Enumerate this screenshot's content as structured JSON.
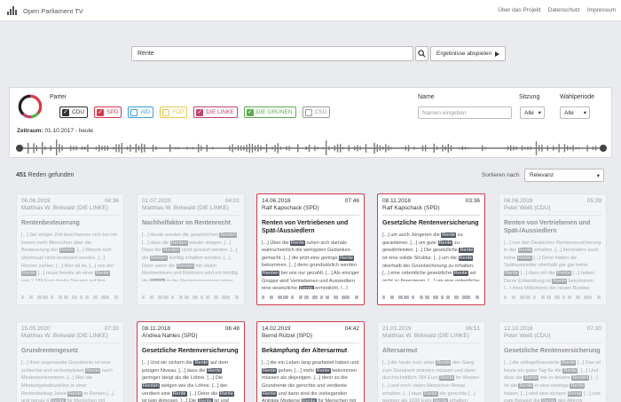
{
  "app": {
    "title": "Open Parliament TV"
  },
  "nav": {
    "items": [
      "Über das Projekt",
      "Datenschutz",
      "Impressum"
    ]
  },
  "search": {
    "value": "Rente",
    "play_label": "Ergebnisse abspielen"
  },
  "filters": {
    "partei_label": "Partei",
    "parties": [
      {
        "name": "CDU",
        "checked": true,
        "color": "#333333"
      },
      {
        "name": "SPD",
        "checked": true,
        "color": "#d43b4a"
      },
      {
        "name": "AfD",
        "checked": false,
        "color": "#3aa0d8"
      },
      {
        "name": "FDP",
        "checked": false,
        "color": "#e6c84a"
      },
      {
        "name": "DIE LINKE",
        "checked": true,
        "color": "#c0436e"
      },
      {
        "name": "DIE GRÜNEN",
        "checked": true,
        "color": "#5bae4c"
      },
      {
        "name": "CSU",
        "checked": false,
        "color": "#999999"
      }
    ],
    "name_label": "Name",
    "name_placeholder": "Namen eingeben",
    "sitzung_label": "Sitzung",
    "sitzung_value": "Alle",
    "wahlperiode_label": "Wahlperiode",
    "wahlperiode_value": "Alle",
    "zeitraum_label": "Zeitraum:",
    "zeitraum_value": "01.10.2017 - heute"
  },
  "results": {
    "count": "451",
    "count_suffix": "Reden gefunden",
    "sort_label": "Sortieren nach",
    "sort_value": "Relevanz"
  },
  "cards": [
    {
      "date": "06.06.2019",
      "time": "04:36",
      "speaker": "Matthias W. Birkwald (DIE LINKE)",
      "title": "Rentenbesteuerung",
      "active": false,
      "text": "[...] Sei einiger Zeit beschweren sich bei mir immer mehr Menschen über die Besteuerung der {Rente}. [...] Warum sich überhaupt nicht besteuert werden. [...] Renten zahlen, [...] Wer alt ist, [...] von der {Rente} [...] muss bereits ab einer {Rente} von 1 189 Euro brutto Steuern auf ihre {Rente}"
    },
    {
      "date": "01.07.2020",
      "time": "04:01",
      "speaker": "Matthias W. Birkwald (DIE LINKE)",
      "title": "Nachholfaktor im Rentenrecht",
      "active": false,
      "text": "[...] Heute wurden die gesetzlichen {Renten} [...] dass die {Renten} wieder steigen. [...] Dass die {Renten} nicht gekürzt werden. [...] die {Renten} künftig erhalten werden. [...] Denn wenn die {Renten} mit vielen Rentnerinnen und Rentnern wird ein künftig die {Rente} in der Rentenanpassung einer schrittweise"
    },
    {
      "date": "14.06.2018",
      "time": "07:46",
      "speaker": "Ralf Kapschack (SPD)",
      "title": "Renten von Vertriebenen und Spät-/Aussiedlern",
      "active": true,
      "text": "[...] Über die {Rente} ruhen sich damals wahrscheinlich die wenigsten Gedanken gemacht. [...] die jetzt eine geringe {Rente} bekommen. [...] denn grundsätzlich werden {Renten} bei uns nur gezahlt. [...] Als einziger Gruppe wird Vertriebenen und Aussiedlern eine gesetzliche {Rente} ermöglicht. [...] obwohl dieser {Rente}"
    },
    {
      "date": "08.11.2018",
      "time": "03:36",
      "speaker": "Ralf Kapschack (SPD)",
      "title": "Gesetzliche Rentenversicherung",
      "active": true,
      "text": "[...] um auch Jüngeren die {Rente} zu garantieren. [...] um gute {Rente} zu gewährleisten. [...] Die gesetzliche {Rente} ist eine solide Struktur. [...] um die {Rente} oberhalb der Grundsicherung zu erhalten. [...] eine ordentliche gesetzliche {Rente} sei nicht zu finanzieren. [...] um eine ordentliche"
    },
    {
      "date": "06.06.2019",
      "time": "05:39",
      "speaker": "Peter Weiß (CDU)",
      "title": "Renten von Vertriebenen und Spät-/Aussiedlern",
      "active": false,
      "text": "[...] von den Deutschen Rentenversicherung in der {Rente} erhalten. [...] besonders auch keine {Rente} [...] Denn hätten die Spätaussiedler oberhalb gar gar keine {Rente} [...] dass wir die {Rente} [...] haben. Diese Entwicklung ist {Rente} bekommen. [...] ihres Mitbürgers der neuen Bundes"
    },
    {
      "date": "15.05.2020",
      "time": "07:30",
      "speaker": "Matthias W. Birkwald (DIE LINKE)",
      "title": "Grundrentengesetz",
      "active": false,
      "text": "[...] Ihrer sogenannte Grundrente ist eine schlechte und verkompliziert {Rente} nach Mindesteinkommen. [...] Wer die Mindestgehaltszahlen in einer Rentenbeitrag Jahre {Rente} in Renten [...] und genau 4 {Rente} für Menschen mit niedrigen {Renten}"
    },
    {
      "date": "08.11.2018",
      "time": "06:48",
      "speaker": "Andrea Nahles (SPD)",
      "title": "Gesetzliche Rentenversicherung",
      "active": true,
      "text": "[...] Und wir sichern die {Rente} auf dem jetzigen Niveau. [...] dass die {Rente} geringer steigt als die Löhne. [...] Die {Renten} steigen wie die Löhne. [...] der verdient eine {Rente}. [...] Denn die {Rente} ist kein Almosen. [...] Die {Rente} ist und bleibt eine verdiente Leistung"
    },
    {
      "date": "14.02.2019",
      "time": "04:42",
      "speaker": "Bernd Rützel (SPD)",
      "title": "Bekämpfung der Altersarmut",
      "active": true,
      "text": "[...] die ein Leben lang gearbeitet haben und {Rente} gehen. [...] mehr {Rente} bekommen müssen als diejenigen. [...] denn so die Grundrente die gerechte und verdiente {Rente} und dann sind die vorliegenden Anträge Moderne {Rente} für Menschen mit geringer {Rente}"
    },
    {
      "date": "21.03.2019",
      "time": "06:51",
      "speaker": "Matthias W. Birkwald (DIE LINKE)",
      "title": "Altersarmut",
      "active": false,
      "text": "[...] die heute trotz einer {Rente} den Gang zum Sozialamt antreten müssen und dann durchschnittlich 784 Euro {Rente} im Westen [...] und noch vielen Menschen Monat erhalten. [...] dass {Rente} die gerechte [...] weniger als 1000 Euro {Rente} erhalten"
    },
    {
      "date": "12.10.2018",
      "time": "07:30",
      "speaker": "Peter Weiß (CDU)",
      "title": "Gesetzliche Rentenversicherung",
      "active": false,
      "text": "[...] die umlagefinanzierte {Rente} [...] Das ist heute ein guter Tag für die {Rente}. [...] Und dass die {Rente} wie in diesem {Renten} [...] Ist die {Rente} in eine niedrige {Rente} haben. [...] wird eine sichere {Rente} [...] und zum Beispiel die {Rente} des Alterns"
    }
  ]
}
